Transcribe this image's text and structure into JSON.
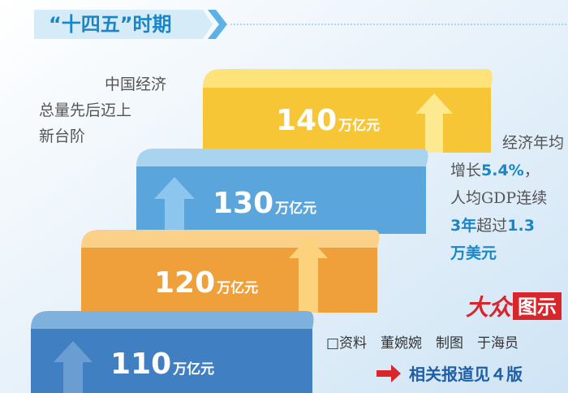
{
  "header": {
    "title": "“十四五”时期"
  },
  "left_note": {
    "lines": [
      "中国经济",
      "总量先后迈上",
      "新台阶"
    ]
  },
  "steps": [
    {
      "value": "140",
      "unit": "万亿元"
    },
    {
      "value": "130",
      "unit": "万亿元"
    },
    {
      "value": "120",
      "unit": "万亿元"
    },
    {
      "value": "110",
      "unit": "万亿元"
    }
  ],
  "right_note": {
    "line1": "经济年均",
    "line2a": "增长",
    "line2b": "5.4%",
    "line2c": "，",
    "line3": "人均GDP连续",
    "line4a": "3年",
    "line4b": "超过",
    "line4c": "1.3",
    "line5": "万美元"
  },
  "logo": {
    "brand": "大众",
    "label": "图示"
  },
  "credits": "□资料　董婉婉　制图　于海员",
  "footer": "相关报道见４版"
}
